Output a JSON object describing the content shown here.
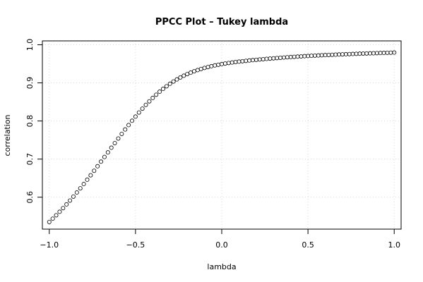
{
  "chart_data": {
    "type": "scatter",
    "title": "PPCC Plot – Tukey lambda",
    "xlabel": "lambda",
    "ylabel": "correlation",
    "xlim": [
      -1.04,
      1.04
    ],
    "ylim": [
      0.5162,
      1.0102
    ],
    "x_ticks": [
      -1.0,
      -0.5,
      0.0,
      0.5,
      1.0
    ],
    "x_tick_labels": [
      "−1.0",
      "−0.5",
      "0.0",
      "0.5",
      "1.0"
    ],
    "y_ticks": [
      0.6,
      0.7,
      0.8,
      0.9,
      1.0
    ],
    "y_tick_labels": [
      "0.6",
      "0.7",
      "0.8",
      "0.9",
      "1.0"
    ],
    "grid": true,
    "marker": "open-circle",
    "x": [
      -1.0,
      -0.98,
      -0.96,
      -0.94,
      -0.92,
      -0.9,
      -0.88,
      -0.86,
      -0.84,
      -0.82,
      -0.8,
      -0.78,
      -0.76,
      -0.74,
      -0.72,
      -0.7,
      -0.68,
      -0.66,
      -0.64,
      -0.62,
      -0.6,
      -0.58,
      -0.56,
      -0.54,
      -0.52,
      -0.5,
      -0.48,
      -0.46,
      -0.44,
      -0.42,
      -0.4,
      -0.38,
      -0.36,
      -0.34,
      -0.32,
      -0.3,
      -0.28,
      -0.26,
      -0.24,
      -0.22,
      -0.2,
      -0.18,
      -0.16,
      -0.14,
      -0.12,
      -0.1,
      -0.08,
      -0.06,
      -0.04,
      -0.02,
      0.0,
      0.02,
      0.04,
      0.06,
      0.08,
      0.1,
      0.12,
      0.14,
      0.16,
      0.18,
      0.2,
      0.22,
      0.24,
      0.26,
      0.28,
      0.3,
      0.32,
      0.34,
      0.36,
      0.38,
      0.4,
      0.42,
      0.44,
      0.46,
      0.48,
      0.5,
      0.52,
      0.54,
      0.56,
      0.58,
      0.6,
      0.62,
      0.64,
      0.66,
      0.68,
      0.7,
      0.72,
      0.74,
      0.76,
      0.78,
      0.8,
      0.82,
      0.84,
      0.86,
      0.88,
      0.9,
      0.92,
      0.94,
      0.96,
      0.98,
      1.0
    ],
    "y": [
      0.535,
      0.5436,
      0.5525,
      0.5617,
      0.5713,
      0.5811,
      0.5912,
      0.6016,
      0.6123,
      0.6233,
      0.6345,
      0.6459,
      0.6575,
      0.6693,
      0.6813,
      0.6933,
      0.7055,
      0.7176,
      0.7298,
      0.742,
      0.754,
      0.766,
      0.7777,
      0.7893,
      0.8006,
      0.8115,
      0.8222,
      0.8324,
      0.8423,
      0.8516,
      0.8605,
      0.869,
      0.8769,
      0.8843,
      0.8912,
      0.8977,
      0.9036,
      0.9091,
      0.9142,
      0.9188,
      0.9231,
      0.9269,
      0.9304,
      0.9336,
      0.9365,
      0.9392,
      0.9416,
      0.9438,
      0.9458,
      0.9476,
      0.9493,
      0.9508,
      0.9522,
      0.9535,
      0.9547,
      0.9558,
      0.9568,
      0.9578,
      0.9588,
      0.9597,
      0.9605,
      0.9614,
      0.9622,
      0.963,
      0.9638,
      0.9645,
      0.9652,
      0.9659,
      0.9666,
      0.9672,
      0.9678,
      0.9684,
      0.969,
      0.9695,
      0.9701,
      0.9706,
      0.9711,
      0.9716,
      0.972,
      0.9725,
      0.9729,
      0.9733,
      0.9737,
      0.9741,
      0.9745,
      0.9749,
      0.9752,
      0.9756,
      0.9759,
      0.9762,
      0.9766,
      0.9769,
      0.9772,
      0.9775,
      0.9778,
      0.9781,
      0.9784,
      0.9787,
      0.979,
      0.9793,
      0.9796
    ]
  }
}
